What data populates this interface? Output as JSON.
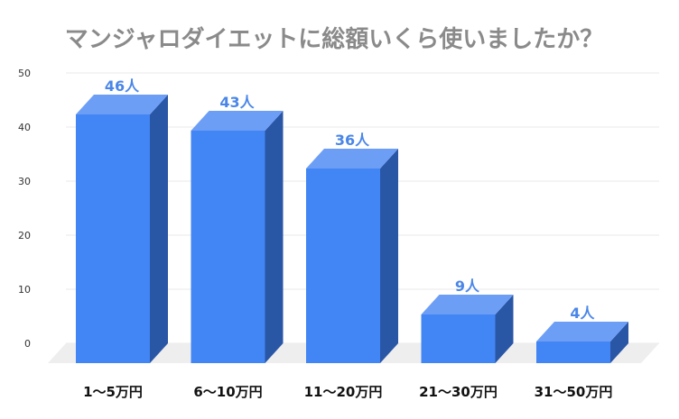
{
  "chart_data": {
    "type": "bar",
    "title": "マンジャロダイエットに総額いくら使いましたか？",
    "categories": [
      "1〜5万円",
      "6〜10万円",
      "11〜20万円",
      "21〜30万円",
      "31〜50万円"
    ],
    "values": [
      46,
      43,
      36,
      9,
      4
    ],
    "data_labels": [
      "46人",
      "43人",
      "36人",
      "9人",
      "4人"
    ],
    "yticks": [
      "0",
      "10",
      "20",
      "30",
      "40",
      "50"
    ],
    "ylim": [
      0,
      50
    ],
    "xlabel": "",
    "ylabel": "",
    "grid": true,
    "legend": "none",
    "colors": {
      "front": "#4285f4",
      "top": "#6d9ef6",
      "side": "#2a56a6",
      "label": "#4a86e8",
      "floor": "#eeeeee",
      "grid": "#e8e8e8",
      "title": "#8a8a8a"
    }
  }
}
